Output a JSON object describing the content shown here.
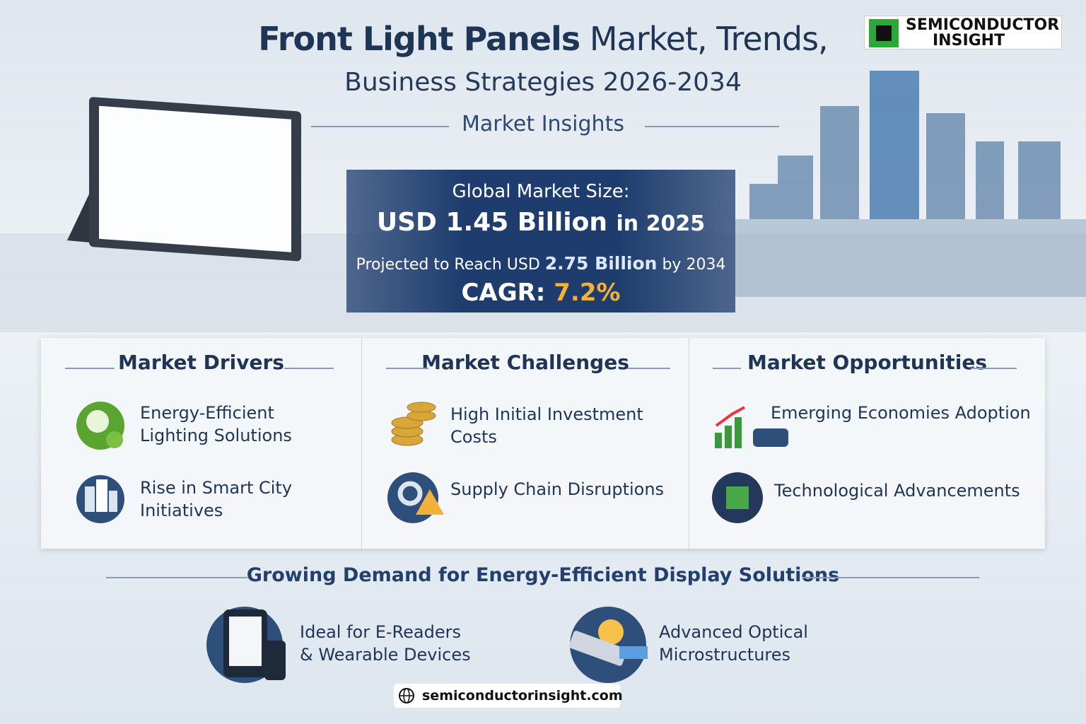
{
  "header": {
    "title_bold": "Front Light Panels",
    "title_rest": "Market, Trends,",
    "subtitle": "Business Strategies 2026-2034",
    "section": "Market Insights"
  },
  "logo": {
    "line1": "SEMICONDUCTOR",
    "line2": "INSIGHT"
  },
  "market_size": {
    "label": "Global Market Size:",
    "value": "USD 1.45 Billion",
    "year": "in 2025",
    "projection_prefix": "Projected to Reach USD",
    "projection_value": "2.75 Billion",
    "projection_suffix": "by 2034",
    "cagr_label": "CAGR:",
    "cagr_value": "7.2%"
  },
  "panels": [
    {
      "title": "Market Drivers",
      "items": [
        [
          "Energy-Efficient",
          "Lighting Solutions"
        ],
        [
          "Rise in Smart City",
          "Initiatives"
        ]
      ]
    },
    {
      "title": "Market Challenges",
      "items": [
        [
          "High Initial Investment Costs"
        ],
        [
          "Supply Chain Disruptions"
        ]
      ]
    },
    {
      "title": "Market Opportunities",
      "items": [
        [
          "Emerging Economies Adoption"
        ],
        [
          "Technological Advancements"
        ]
      ]
    }
  ],
  "demand": {
    "title": "Growing Demand for Energy-Efficient Display Solutions",
    "items": [
      [
        "Ideal for E-Readers",
        "& Wearable Devices"
      ],
      [
        "Advanced Optical",
        "Microstructures"
      ]
    ]
  },
  "footer": {
    "url": "semiconductorinsight.com"
  }
}
